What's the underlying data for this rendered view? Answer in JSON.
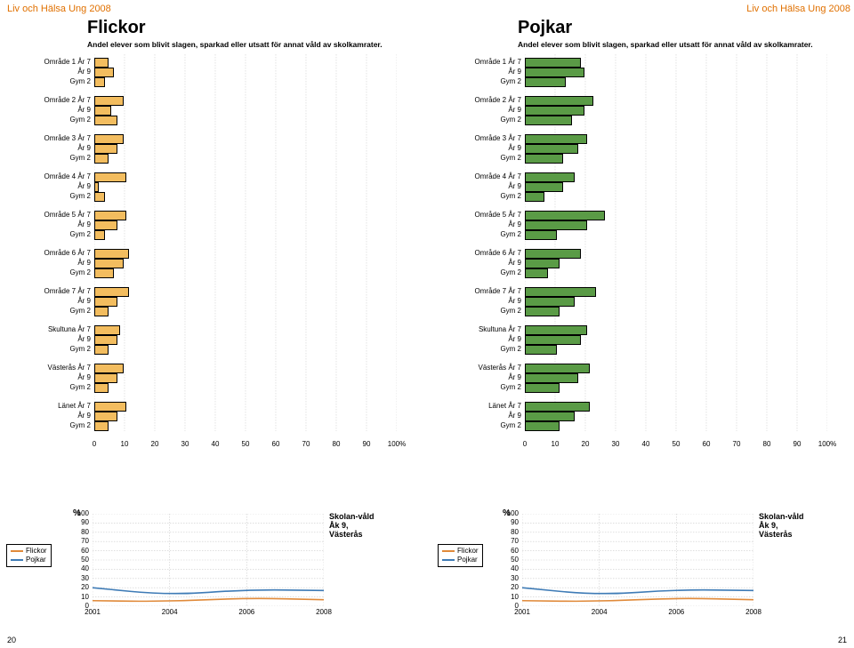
{
  "brand": "Liv och Hälsa Ung 2008",
  "left_page_num": "20",
  "right_page_num": "21",
  "main_title_left": "Flickor",
  "main_title_right": "Pojkar",
  "subtitle": "Andel elever som blivit slagen, sparkad eller utsatt för annat våld av skolkamrater.",
  "bar_colors": {
    "left": "#f3bd5f",
    "right": "#5a9b46"
  },
  "x_ticks": [
    0,
    10,
    20,
    30,
    40,
    50,
    60,
    70,
    80,
    90
  ],
  "x_final": "100%",
  "groups": [
    {
      "name": "Område 1",
      "rows": [
        {
          "label": "Område 1 År 7",
          "val_l": 4,
          "val_r": 18
        },
        {
          "label": "År 9",
          "val_l": 6,
          "val_r": 19
        },
        {
          "label": "Gym 2",
          "val_l": 3,
          "val_r": 13
        }
      ]
    },
    {
      "name": "Område 2",
      "rows": [
        {
          "label": "Område 2 År 7",
          "val_l": 9,
          "val_r": 22
        },
        {
          "label": "År 9",
          "val_l": 5,
          "val_r": 19
        },
        {
          "label": "Gym 2",
          "val_l": 7,
          "val_r": 15
        }
      ]
    },
    {
      "name": "Område 3",
      "rows": [
        {
          "label": "Område 3 År 7",
          "val_l": 9,
          "val_r": 20
        },
        {
          "label": "År 9",
          "val_l": 7,
          "val_r": 17
        },
        {
          "label": "Gym 2",
          "val_l": 4,
          "val_r": 12
        }
      ]
    },
    {
      "name": "Område 4",
      "rows": [
        {
          "label": "Område 4 År 7",
          "val_l": 10,
          "val_r": 16
        },
        {
          "label": "År 9",
          "val_l": 1,
          "val_r": 12
        },
        {
          "label": "Gym 2",
          "val_l": 3,
          "val_r": 6
        }
      ]
    },
    {
      "name": "Område 5",
      "rows": [
        {
          "label": "Område 5 År 7",
          "val_l": 10,
          "val_r": 26
        },
        {
          "label": "År 9",
          "val_l": 7,
          "val_r": 20
        },
        {
          "label": "Gym 2",
          "val_l": 3,
          "val_r": 10
        }
      ]
    },
    {
      "name": "Område 6",
      "rows": [
        {
          "label": "Område 6 År 7",
          "val_l": 11,
          "val_r": 18
        },
        {
          "label": "År 9",
          "val_l": 9,
          "val_r": 11
        },
        {
          "label": "Gym 2",
          "val_l": 6,
          "val_r": 7
        }
      ]
    },
    {
      "name": "Område 7",
      "rows": [
        {
          "label": "Område 7 År 7",
          "val_l": 11,
          "val_r": 23
        },
        {
          "label": "År 9",
          "val_l": 7,
          "val_r": 16
        },
        {
          "label": "Gym 2",
          "val_l": 4,
          "val_r": 11
        }
      ]
    },
    {
      "name": "Skultuna",
      "rows": [
        {
          "label": "Skultuna År 7",
          "val_l": 8,
          "val_r": 20
        },
        {
          "label": "År 9",
          "val_l": 7,
          "val_r": 18
        },
        {
          "label": "Gym 2",
          "val_l": 4,
          "val_r": 10
        }
      ]
    },
    {
      "name": "Västerås",
      "rows": [
        {
          "label": "Västerås År 7",
          "val_l": 9,
          "val_r": 21
        },
        {
          "label": "År 9",
          "val_l": 7,
          "val_r": 17
        },
        {
          "label": "Gym 2",
          "val_l": 4,
          "val_r": 11
        }
      ]
    },
    {
      "name": "Länet",
      "rows": [
        {
          "label": "Länet År 7",
          "val_l": 10,
          "val_r": 21
        },
        {
          "label": "År 9",
          "val_l": 7,
          "val_r": 16
        },
        {
          "label": "Gym 2",
          "val_l": 4,
          "val_r": 11
        }
      ]
    }
  ],
  "trend": {
    "title_l1": "Skolan-våld",
    "title_l2": "Åk 9, Västerås",
    "pct": "%",
    "xticks": [
      "2001",
      "2004",
      "2006",
      "2008"
    ],
    "yticks": [
      0,
      10,
      20,
      30,
      40,
      50,
      60,
      70,
      80,
      90,
      100
    ],
    "colors": {
      "flickor": "#e08a3a",
      "pojkar": "#3e7bb6"
    },
    "flickor": [
      6,
      5,
      9,
      7
    ],
    "pojkar": [
      20,
      12,
      18,
      17
    ],
    "legend": {
      "f": "Flickor",
      "p": "Pojkar"
    }
  }
}
